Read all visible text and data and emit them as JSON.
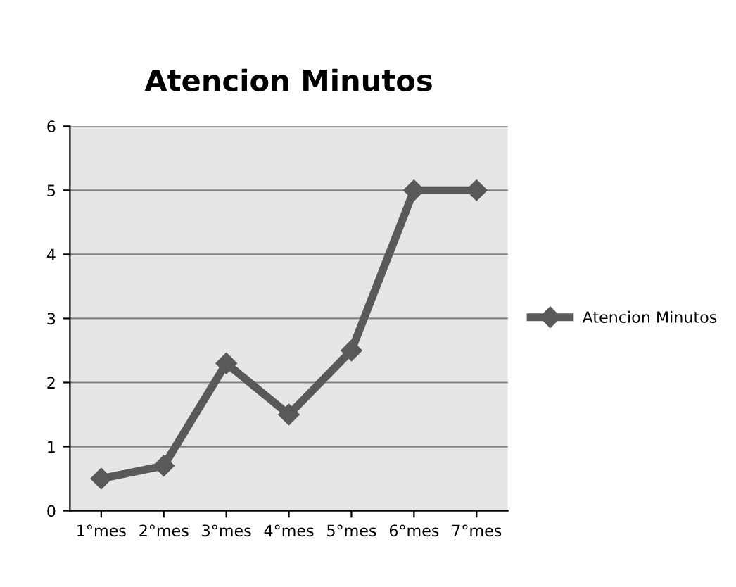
{
  "chart_data": {
    "type": "line",
    "title": "Atencion Minutos",
    "categories": [
      "1°mes",
      "2°mes",
      "3°mes",
      "4°mes",
      "5°mes",
      "6°mes",
      "7°mes"
    ],
    "series": [
      {
        "name": "Atencion Minutos",
        "color": "#595959",
        "values": [
          0.5,
          0.7,
          2.3,
          1.5,
          2.5,
          5,
          5
        ]
      }
    ],
    "ylim": [
      0,
      6
    ],
    "yticks": [
      0,
      1,
      2,
      3,
      4,
      5,
      6
    ],
    "grid": "y",
    "legend": "right",
    "marker": "diamond",
    "line_style": "solid"
  }
}
